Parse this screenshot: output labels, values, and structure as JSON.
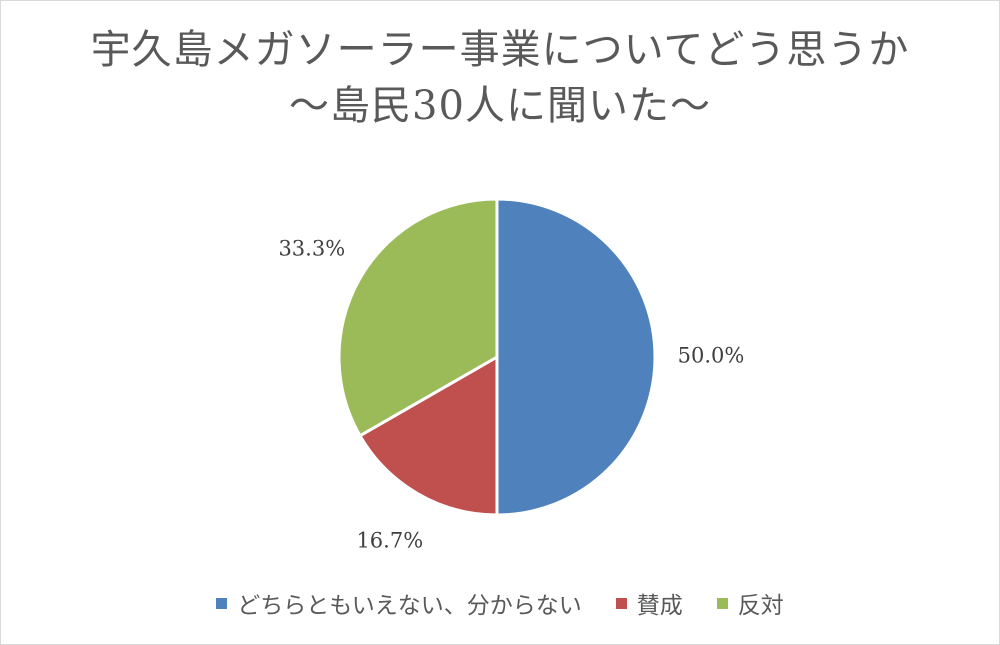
{
  "chart_data": {
    "type": "pie",
    "title_lines": [
      "宇久島メガソーラー事業についてどう思うか",
      "～島民30人に聞いた～"
    ],
    "slices": [
      {
        "name": "どちらともいえない、分からない",
        "value": 50.0,
        "label": "50.0%",
        "color": "#4f81bd"
      },
      {
        "name": "賛成",
        "value": 16.7,
        "label": "16.7%",
        "color": "#c0504d"
      },
      {
        "name": "反対",
        "value": 33.3,
        "label": "33.3%",
        "color": "#9bbb59"
      }
    ],
    "start_angle_deg": 0,
    "direction": "clockwise",
    "legend_position": "bottom"
  }
}
